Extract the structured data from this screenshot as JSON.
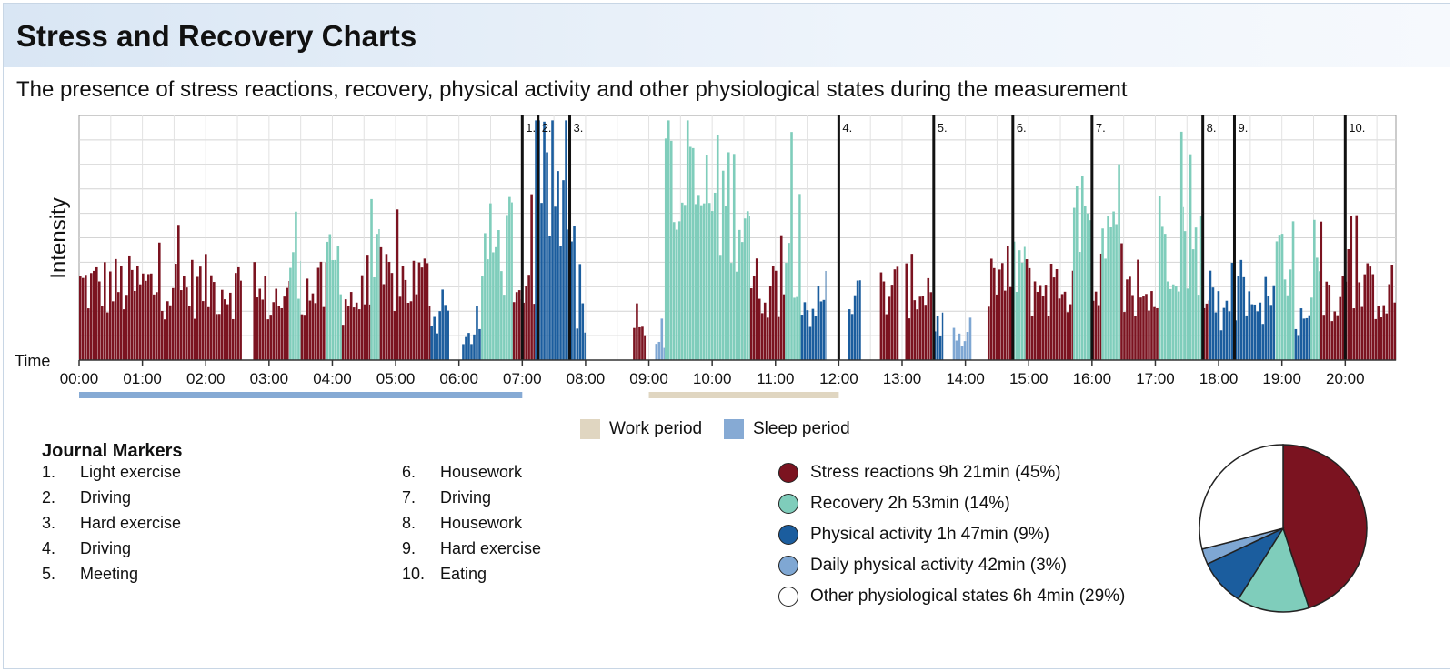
{
  "header": {
    "title": "Stress and Recovery Charts",
    "subtitle": "The presence of stress reactions, recovery, physical activity and other physiological states during the measurement"
  },
  "chart_data": {
    "type": "bar",
    "ylabel": "Intensity",
    "xlabel": "Time",
    "x_ticks": [
      "00:00",
      "01:00",
      "02:00",
      "03:00",
      "04:00",
      "05:00",
      "06:00",
      "07:00",
      "08:00",
      "09:00",
      "10:00",
      "11:00",
      "12:00",
      "13:00",
      "14:00",
      "15:00",
      "16:00",
      "17:00",
      "18:00",
      "19:00",
      "20:00"
    ],
    "x_range_hours": [
      0,
      20.8
    ],
    "y_range": [
      0,
      100
    ],
    "grid": true,
    "colors": {
      "stress": "#7b1320",
      "recovery": "#7fcdbb",
      "physical": "#1b5d9e",
      "daily": "#7fa7d3",
      "other": "#ffffff",
      "work": "#e0d6c1",
      "sleep": "#86aad4"
    },
    "segments": [
      {
        "state": "stress",
        "start": 0.0,
        "end": 2.57,
        "level": 30
      },
      {
        "state": "stress",
        "start": 2.75,
        "end": 3.32,
        "level": 25
      },
      {
        "state": "recovery",
        "start": 3.32,
        "end": 3.5,
        "level": 45
      },
      {
        "state": "stress",
        "start": 3.5,
        "end": 3.9,
        "level": 28
      },
      {
        "state": "recovery",
        "start": 3.9,
        "end": 4.15,
        "level": 40
      },
      {
        "state": "stress",
        "start": 4.15,
        "end": 4.6,
        "level": 25
      },
      {
        "state": "recovery",
        "start": 4.6,
        "end": 4.75,
        "level": 38
      },
      {
        "state": "stress",
        "start": 4.75,
        "end": 5.55,
        "level": 32
      },
      {
        "state": "physical",
        "start": 5.55,
        "end": 5.85,
        "level": 18
      },
      {
        "state": "physical",
        "start": 6.05,
        "end": 6.35,
        "level": 10
      },
      {
        "state": "recovery",
        "start": 6.35,
        "end": 6.85,
        "level": 45
      },
      {
        "state": "stress",
        "start": 6.85,
        "end": 7.0,
        "level": 22
      },
      {
        "state": "stress",
        "start": 7.0,
        "end": 7.2,
        "level": 35
      },
      {
        "state": "physical",
        "start": 7.2,
        "end": 7.85,
        "level": 68
      },
      {
        "state": "physical",
        "start": 7.85,
        "end": 8.0,
        "level": 20
      },
      {
        "state": "stress",
        "start": 8.75,
        "end": 8.95,
        "level": 18
      },
      {
        "state": "daily",
        "start": 9.1,
        "end": 9.25,
        "level": 8
      },
      {
        "state": "recovery",
        "start": 9.25,
        "end": 10.6,
        "level": 65
      },
      {
        "state": "stress",
        "start": 10.6,
        "end": 11.15,
        "level": 30
      },
      {
        "state": "recovery",
        "start": 11.15,
        "end": 11.4,
        "level": 45
      },
      {
        "state": "physical",
        "start": 11.4,
        "end": 11.8,
        "level": 22
      },
      {
        "state": "physical",
        "start": 12.15,
        "end": 12.35,
        "level": 25
      },
      {
        "state": "stress",
        "start": 12.65,
        "end": 12.95,
        "level": 28
      },
      {
        "state": "stress",
        "start": 13.05,
        "end": 13.5,
        "level": 30
      },
      {
        "state": "physical",
        "start": 13.5,
        "end": 13.65,
        "level": 15
      },
      {
        "state": "daily",
        "start": 13.8,
        "end": 14.1,
        "level": 8
      },
      {
        "state": "stress",
        "start": 14.35,
        "end": 14.75,
        "level": 33
      },
      {
        "state": "recovery",
        "start": 14.75,
        "end": 14.95,
        "level": 40
      },
      {
        "state": "stress",
        "start": 14.95,
        "end": 15.7,
        "level": 30
      },
      {
        "state": "recovery",
        "start": 15.7,
        "end": 16.0,
        "level": 50
      },
      {
        "state": "stress",
        "start": 16.0,
        "end": 16.15,
        "level": 20
      },
      {
        "state": "recovery",
        "start": 16.15,
        "end": 16.45,
        "level": 45
      },
      {
        "state": "stress",
        "start": 16.45,
        "end": 17.05,
        "level": 26
      },
      {
        "state": "recovery",
        "start": 17.05,
        "end": 17.45,
        "level": 50
      },
      {
        "state": "recovery",
        "start": 17.45,
        "end": 17.75,
        "level": 45
      },
      {
        "state": "stress",
        "start": 17.75,
        "end": 17.85,
        "level": 20
      },
      {
        "state": "physical",
        "start": 17.85,
        "end": 18.25,
        "level": 20
      },
      {
        "state": "physical",
        "start": 18.25,
        "end": 18.9,
        "level": 25
      },
      {
        "state": "recovery",
        "start": 18.9,
        "end": 19.2,
        "level": 45
      },
      {
        "state": "physical",
        "start": 19.2,
        "end": 19.45,
        "level": 15
      },
      {
        "state": "recovery",
        "start": 19.45,
        "end": 19.6,
        "level": 45
      },
      {
        "state": "stress",
        "start": 19.6,
        "end": 20.8,
        "level": 28
      }
    ],
    "markers": [
      {
        "label": "1.",
        "time": 7.0
      },
      {
        "label": "2.",
        "time": 7.25
      },
      {
        "label": "3.",
        "time": 7.75
      },
      {
        "label": "4.",
        "time": 12.0
      },
      {
        "label": "5.",
        "time": 13.5
      },
      {
        "label": "6.",
        "time": 14.75
      },
      {
        "label": "7.",
        "time": 16.0
      },
      {
        "label": "8.",
        "time": 17.75
      },
      {
        "label": "9.",
        "time": 18.25
      },
      {
        "label": "10.",
        "time": 20.0
      }
    ],
    "periods": [
      {
        "type": "sleep",
        "start": 0.0,
        "end": 7.0
      },
      {
        "type": "work",
        "start": 9.0,
        "end": 12.0
      }
    ]
  },
  "period_legend": {
    "work_label": "Work period",
    "sleep_label": "Sleep period"
  },
  "journal": {
    "title": "Journal Markers",
    "items": [
      {
        "num": "1.",
        "label": "Light exercise"
      },
      {
        "num": "2.",
        "label": "Driving"
      },
      {
        "num": "3.",
        "label": "Hard exercise"
      },
      {
        "num": "4.",
        "label": "Driving"
      },
      {
        "num": "5.",
        "label": "Meeting"
      },
      {
        "num": "6.",
        "label": "Housework"
      },
      {
        "num": "7.",
        "label": "Driving"
      },
      {
        "num": "8.",
        "label": "Housework"
      },
      {
        "num": "9.",
        "label": "Hard exercise"
      },
      {
        "num": "10.",
        "label": "Eating"
      }
    ]
  },
  "pie": {
    "type": "pie",
    "slices": [
      {
        "label": "Stress reactions 9h 21min (45%)",
        "value": 45,
        "color": "#7b1320"
      },
      {
        "label": "Recovery 2h 53min (14%)",
        "value": 14,
        "color": "#7fcdbb"
      },
      {
        "label": "Physical activity 1h 47min (9%)",
        "value": 9,
        "color": "#1b5d9e"
      },
      {
        "label": "Daily physical activity 42min (3%)",
        "value": 3,
        "color": "#7fa7d3"
      },
      {
        "label": "Other physiological states 6h 4min (29%)",
        "value": 29,
        "color": "#ffffff"
      }
    ]
  }
}
